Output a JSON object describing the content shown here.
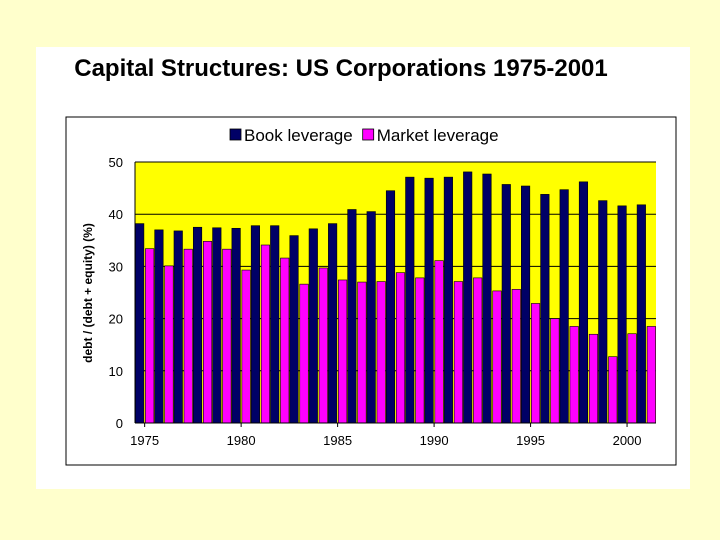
{
  "slide": {
    "title": "Capital Structures: US Corporations 1975-2001"
  },
  "chart_data": {
    "type": "bar",
    "title": "Capital Structures: US Corporations 1975-2001",
    "xlabel": "",
    "ylabel": "debt / (debt + equity) (%)",
    "ylim": [
      0,
      50
    ],
    "yticks": [
      0,
      10,
      20,
      30,
      40,
      50
    ],
    "xtick_labels": [
      "1975",
      "1980",
      "1985",
      "1990",
      "1995",
      "2000"
    ],
    "grid": true,
    "legend_position": "top",
    "colors": {
      "plot_background": "#ffff00",
      "book": "#000066",
      "market": "#ff00ff"
    },
    "categories": [
      "1975",
      "1976",
      "1977",
      "1978",
      "1979",
      "1980",
      "1981",
      "1982",
      "1983",
      "1984",
      "1985",
      "1986",
      "1987",
      "1988",
      "1989",
      "1990",
      "1991",
      "1992",
      "1993",
      "1994",
      "1995",
      "1996",
      "1997",
      "1998",
      "1999",
      "2000",
      "2001"
    ],
    "series": [
      {
        "name": "Book leverage",
        "values": [
          38.2,
          37.0,
          36.8,
          37.5,
          37.4,
          37.3,
          37.8,
          37.8,
          35.9,
          37.2,
          38.2,
          40.9,
          40.5,
          44.5,
          47.1,
          46.9,
          47.1,
          48.1,
          47.7,
          45.7,
          45.4,
          43.8,
          44.7,
          46.2,
          42.6,
          41.6,
          41.8
        ]
      },
      {
        "name": "Market leverage",
        "values": [
          33.4,
          30.1,
          33.3,
          34.8,
          33.3,
          29.3,
          34.1,
          31.6,
          26.6,
          29.7,
          27.4,
          27.0,
          27.1,
          28.8,
          27.8,
          31.1,
          27.1,
          27.8,
          25.3,
          25.6,
          22.9,
          20.0,
          18.5,
          17.0,
          12.7,
          17.1,
          18.5
        ]
      }
    ]
  }
}
